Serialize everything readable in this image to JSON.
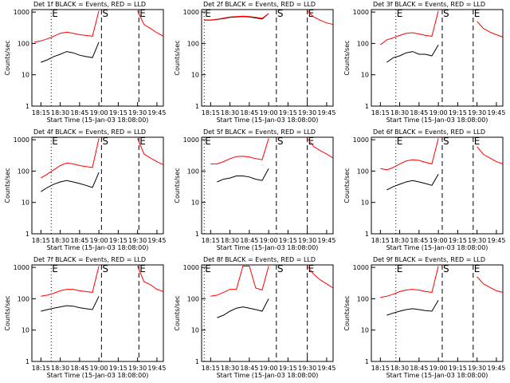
{
  "chart_data": [
    {
      "type": "line",
      "title": "Det 1f BLACK = Events, RED = LLD",
      "x_label": "Start Time (15-Jan-03 18:08:00)",
      "y_label": "Counts/sec",
      "log_y": true,
      "x": [
        "18:10",
        "18:15",
        "18:20",
        "18:25",
        "18:30",
        "18:35",
        "18:40",
        "18:45",
        "18:50",
        "18:55",
        "19:00",
        "19:05",
        "19:10",
        "19:15",
        "19:20",
        "19:25",
        "19:30",
        "19:35",
        "19:40",
        "19:45",
        "19:50"
      ],
      "xlim": [
        "18:08",
        "19:50"
      ],
      "xticks": [
        "18:15",
        "18:30",
        "18:45",
        "19:00",
        "19:15",
        "19:30",
        "19:45"
      ],
      "ylim": [
        1,
        1200
      ],
      "yticks": [
        1,
        10,
        100,
        1000
      ],
      "markers": [
        {
          "label": "E",
          "x": "18:23",
          "style": "dotted"
        },
        {
          "label": "S",
          "x": "19:02",
          "style": "dashed"
        },
        {
          "label": "E",
          "x": "19:31",
          "style": "dashed"
        }
      ],
      "series": [
        {
          "color": "#000000",
          "values": [
            null,
            25,
            30,
            38,
            45,
            55,
            50,
            42,
            38,
            35,
            110,
            null,
            null,
            null,
            null,
            null,
            null,
            null,
            null,
            null,
            null
          ]
        },
        {
          "color": "#ff0000",
          "values": [
            110,
            120,
            140,
            170,
            210,
            230,
            210,
            190,
            180,
            170,
            1100,
            null,
            null,
            null,
            null,
            null,
            1100,
            400,
            300,
            220,
            170
          ]
        }
      ]
    },
    {
      "type": "line",
      "title": "Det 2f BLACK = Events, RED = LLD",
      "x_label": "Start Time (15-Jan-03 18:08:00)",
      "y_label": "Counts/sec",
      "log_y": true,
      "x": [
        "18:10",
        "18:15",
        "18:20",
        "18:25",
        "18:30",
        "18:35",
        "18:40",
        "18:45",
        "18:50",
        "18:55",
        "19:00",
        "19:05",
        "19:10",
        "19:15",
        "19:20",
        "19:25",
        "19:30",
        "19:35",
        "19:40",
        "19:45",
        "19:50"
      ],
      "xlim": [
        "18:08",
        "19:50"
      ],
      "xticks": [
        "18:15",
        "18:30",
        "18:45",
        "19:00",
        "19:15",
        "19:30",
        "19:45"
      ],
      "ylim": [
        1,
        1200
      ],
      "yticks": [
        1,
        10,
        100,
        1000
      ],
      "markers": [
        {
          "label": "E",
          "x": "18:10",
          "style": "dotted"
        },
        {
          "label": "S",
          "x": "19:06",
          "style": "dashed"
        },
        {
          "label": "E",
          "x": "19:30",
          "style": "dashed"
        }
      ],
      "series": [
        {
          "color": "#000000",
          "values": [
            550,
            550,
            580,
            620,
            680,
            700,
            720,
            700,
            650,
            600,
            900,
            null,
            null,
            null,
            null,
            null,
            null,
            null,
            null,
            null,
            null
          ]
        },
        {
          "color": "#ff0000",
          "values": [
            560,
            560,
            590,
            640,
            700,
            720,
            740,
            720,
            680,
            630,
            900,
            null,
            null,
            null,
            null,
            null,
            1100,
            700,
            550,
            450,
            400
          ]
        }
      ]
    },
    {
      "type": "line",
      "title": "Det 3f BLACK = Events, RED = LLD",
      "x_label": "Start Time (15-Jan-03 18:08:00)",
      "y_label": "Counts/sec",
      "log_y": true,
      "x": [
        "18:10",
        "18:15",
        "18:20",
        "18:25",
        "18:30",
        "18:35",
        "18:40",
        "18:45",
        "18:50",
        "18:55",
        "19:00",
        "19:05",
        "19:10",
        "19:15",
        "19:20",
        "19:25",
        "19:30",
        "19:35",
        "19:40",
        "19:45",
        "19:50"
      ],
      "xlim": [
        "18:08",
        "19:50"
      ],
      "xticks": [
        "18:15",
        "18:30",
        "18:45",
        "19:00",
        "19:15",
        "19:30",
        "19:45"
      ],
      "ylim": [
        1,
        1200
      ],
      "yticks": [
        1,
        10,
        100,
        1000
      ],
      "markers": [
        {
          "label": "E",
          "x": "18:27",
          "style": "dotted"
        },
        {
          "label": "S",
          "x": "19:03",
          "style": "dashed"
        },
        {
          "label": "E",
          "x": "19:27",
          "style": "dashed"
        }
      ],
      "series": [
        {
          "color": "#000000",
          "values": [
            null,
            null,
            25,
            35,
            40,
            50,
            55,
            45,
            45,
            40,
            90,
            null,
            null,
            null,
            null,
            null,
            null,
            null,
            null,
            null,
            null
          ]
        },
        {
          "color": "#ff0000",
          "values": [
            null,
            90,
            130,
            150,
            180,
            210,
            220,
            200,
            180,
            170,
            1100,
            null,
            null,
            null,
            null,
            null,
            500,
            300,
            230,
            190,
            160
          ]
        }
      ]
    },
    {
      "type": "line",
      "title": "Det 4f BLACK = Events, RED = LLD",
      "x_label": "Start Time (15-Jan-03 18:08:00)",
      "y_label": "Counts/sec",
      "log_y": true,
      "x": [
        "18:10",
        "18:15",
        "18:20",
        "18:25",
        "18:30",
        "18:35",
        "18:40",
        "18:45",
        "18:50",
        "18:55",
        "19:00",
        "19:05",
        "19:10",
        "19:15",
        "19:20",
        "19:25",
        "19:30",
        "19:35",
        "19:40",
        "19:45",
        "19:50"
      ],
      "xlim": [
        "18:08",
        "19:50"
      ],
      "xticks": [
        "18:15",
        "18:30",
        "18:45",
        "19:00",
        "19:15",
        "19:30",
        "19:45"
      ],
      "ylim": [
        1,
        1200
      ],
      "yticks": [
        1,
        10,
        100,
        1000
      ],
      "markers": [
        {
          "label": "E",
          "x": "18:23",
          "style": "dotted"
        },
        {
          "label": "S",
          "x": "19:02",
          "style": "dashed"
        },
        {
          "label": "E",
          "x": "19:31",
          "style": "dashed"
        }
      ],
      "series": [
        {
          "color": "#000000",
          "values": [
            null,
            22,
            30,
            38,
            45,
            50,
            45,
            40,
            35,
            30,
            90,
            null,
            null,
            null,
            null,
            null,
            null,
            null,
            null,
            null,
            null
          ]
        },
        {
          "color": "#ff0000",
          "values": [
            null,
            60,
            80,
            110,
            150,
            180,
            170,
            150,
            140,
            130,
            1100,
            null,
            null,
            null,
            null,
            null,
            1100,
            350,
            260,
            200,
            160
          ]
        }
      ]
    },
    {
      "type": "line",
      "title": "Det 5f BLACK = Events, RED = LLD",
      "x_label": "Start Time (15-Jan-03 18:08:00)",
      "y_label": "Counts/sec",
      "log_y": true,
      "x": [
        "18:10",
        "18:15",
        "18:20",
        "18:25",
        "18:30",
        "18:35",
        "18:40",
        "18:45",
        "18:50",
        "18:55",
        "19:00",
        "19:05",
        "19:10",
        "19:15",
        "19:20",
        "19:25",
        "19:30",
        "19:35",
        "19:40",
        "19:45",
        "19:50"
      ],
      "xlim": [
        "18:08",
        "19:50"
      ],
      "xticks": [
        "18:15",
        "18:30",
        "18:45",
        "19:00",
        "19:15",
        "19:30",
        "19:45"
      ],
      "ylim": [
        1,
        1200
      ],
      "yticks": [
        1,
        10,
        100,
        1000
      ],
      "markers": [
        {
          "label": "E",
          "x": "18:10",
          "style": "dotted"
        },
        {
          "label": "S",
          "x": "19:06",
          "style": "dashed"
        },
        {
          "label": "E",
          "x": "19:30",
          "style": "dashed"
        }
      ],
      "series": [
        {
          "color": "#000000",
          "values": [
            null,
            null,
            45,
            55,
            60,
            70,
            70,
            65,
            55,
            50,
            120,
            null,
            null,
            null,
            null,
            null,
            null,
            null,
            null,
            null,
            null
          ]
        },
        {
          "color": "#ff0000",
          "values": [
            null,
            170,
            170,
            200,
            250,
            290,
            300,
            280,
            250,
            230,
            1100,
            null,
            null,
            null,
            null,
            null,
            1100,
            600,
            450,
            350,
            260
          ]
        }
      ]
    },
    {
      "type": "line",
      "title": "Det 6f BLACK = Events, RED = LLD",
      "x_label": "Start Time (15-Jan-03 18:08:00)",
      "y_label": "Counts/sec",
      "log_y": true,
      "x": [
        "18:10",
        "18:15",
        "18:20",
        "18:25",
        "18:30",
        "18:35",
        "18:40",
        "18:45",
        "18:50",
        "18:55",
        "19:00",
        "19:05",
        "19:10",
        "19:15",
        "19:20",
        "19:25",
        "19:30",
        "19:35",
        "19:40",
        "19:45",
        "19:50"
      ],
      "xlim": [
        "18:08",
        "19:50"
      ],
      "xticks": [
        "18:15",
        "18:30",
        "18:45",
        "19:00",
        "19:15",
        "19:30",
        "19:45"
      ],
      "ylim": [
        1,
        1200
      ],
      "yticks": [
        1,
        10,
        100,
        1000
      ],
      "markers": [
        {
          "label": "E",
          "x": "18:27",
          "style": "dotted"
        },
        {
          "label": "S",
          "x": "19:03",
          "style": "dashed"
        },
        {
          "label": "E",
          "x": "19:27",
          "style": "dashed"
        }
      ],
      "series": [
        {
          "color": "#000000",
          "values": [
            null,
            null,
            25,
            32,
            38,
            45,
            50,
            45,
            40,
            35,
            80,
            null,
            null,
            null,
            null,
            null,
            null,
            null,
            null,
            null,
            null
          ]
        },
        {
          "color": "#ff0000",
          "values": [
            null,
            120,
            110,
            130,
            170,
            210,
            230,
            220,
            190,
            170,
            1100,
            null,
            null,
            null,
            null,
            null,
            600,
            340,
            260,
            200,
            170
          ]
        }
      ]
    },
    {
      "type": "line",
      "title": "Det 7f BLACK = Events, RED = LLD",
      "x_label": "Start Time (15-Jan-03 18:08:00)",
      "y_label": "Counts/sec",
      "log_y": true,
      "x": [
        "18:10",
        "18:15",
        "18:20",
        "18:25",
        "18:30",
        "18:35",
        "18:40",
        "18:45",
        "18:50",
        "18:55",
        "19:00",
        "19:05",
        "19:10",
        "19:15",
        "19:20",
        "19:25",
        "19:30",
        "19:35",
        "19:40",
        "19:45",
        "19:50"
      ],
      "xlim": [
        "18:08",
        "19:50"
      ],
      "xticks": [
        "18:15",
        "18:30",
        "18:45",
        "19:00",
        "19:15",
        "19:30",
        "19:45"
      ],
      "ylim": [
        1,
        1200
      ],
      "yticks": [
        1,
        10,
        100,
        1000
      ],
      "markers": [
        {
          "label": "E",
          "x": "18:23",
          "style": "dotted"
        },
        {
          "label": "S",
          "x": "19:02",
          "style": "dashed"
        },
        {
          "label": "E",
          "x": "19:31",
          "style": "dashed"
        }
      ],
      "series": [
        {
          "color": "#000000",
          "values": [
            null,
            40,
            45,
            50,
            55,
            60,
            58,
            52,
            48,
            45,
            120,
            null,
            null,
            null,
            null,
            null,
            null,
            null,
            null,
            null,
            null
          ]
        },
        {
          "color": "#ff0000",
          "values": [
            null,
            120,
            130,
            150,
            180,
            200,
            200,
            180,
            170,
            160,
            1100,
            null,
            null,
            null,
            null,
            null,
            1100,
            350,
            280,
            200,
            170
          ]
        }
      ]
    },
    {
      "type": "line",
      "title": "Det 8f BLACK = Events, RED = LLD",
      "x_label": "Start Time (15-Jan-03 18:08:00)",
      "y_label": "Counts/sec",
      "log_y": true,
      "x": [
        "18:10",
        "18:15",
        "18:20",
        "18:25",
        "18:30",
        "18:35",
        "18:40",
        "18:45",
        "18:50",
        "18:55",
        "19:00",
        "19:05",
        "19:10",
        "19:15",
        "19:20",
        "19:25",
        "19:30",
        "19:35",
        "19:40",
        "19:45",
        "19:50"
      ],
      "xlim": [
        "18:08",
        "19:50"
      ],
      "xticks": [
        "18:15",
        "18:30",
        "18:45",
        "19:00",
        "19:15",
        "19:30",
        "19:45"
      ],
      "ylim": [
        1,
        1200
      ],
      "yticks": [
        1,
        10,
        100,
        1000
      ],
      "markers": [
        {
          "label": "E",
          "x": "18:10",
          "style": "dotted"
        },
        {
          "label": "S",
          "x": "19:06",
          "style": "dashed"
        },
        {
          "label": "E",
          "x": "19:30",
          "style": "dashed"
        }
      ],
      "series": [
        {
          "color": "#000000",
          "values": [
            null,
            null,
            25,
            30,
            40,
            50,
            55,
            50,
            45,
            40,
            100,
            null,
            null,
            null,
            null,
            null,
            null,
            null,
            null,
            null,
            null
          ]
        },
        {
          "color": "#ff0000",
          "values": [
            null,
            120,
            130,
            160,
            200,
            200,
            1100,
            1100,
            220,
            190,
            1100,
            null,
            null,
            null,
            null,
            null,
            1100,
            600,
            400,
            300,
            220
          ]
        }
      ]
    },
    {
      "type": "line",
      "title": "Det 9f BLACK = Events, RED = LLD",
      "x_label": "Start Time (15-Jan-03 18:08:00)",
      "y_label": "Counts/sec",
      "log_y": true,
      "x": [
        "18:10",
        "18:15",
        "18:20",
        "18:25",
        "18:30",
        "18:35",
        "18:40",
        "18:45",
        "18:50",
        "18:55",
        "19:00",
        "19:05",
        "19:10",
        "19:15",
        "19:20",
        "19:25",
        "19:30",
        "19:35",
        "19:40",
        "19:45",
        "19:50"
      ],
      "xlim": [
        "18:08",
        "19:50"
      ],
      "xticks": [
        "18:15",
        "18:30",
        "18:45",
        "19:00",
        "19:15",
        "19:30",
        "19:45"
      ],
      "ylim": [
        1,
        1200
      ],
      "yticks": [
        1,
        10,
        100,
        1000
      ],
      "markers": [
        {
          "label": "E",
          "x": "18:27",
          "style": "dotted"
        },
        {
          "label": "S",
          "x": "19:03",
          "style": "dashed"
        },
        {
          "label": "E",
          "x": "19:27",
          "style": "dashed"
        }
      ],
      "series": [
        {
          "color": "#000000",
          "values": [
            null,
            null,
            30,
            35,
            40,
            45,
            48,
            45,
            42,
            40,
            90,
            null,
            null,
            null,
            null,
            null,
            null,
            null,
            null,
            null,
            null
          ]
        },
        {
          "color": "#ff0000",
          "values": [
            null,
            110,
            120,
            140,
            170,
            190,
            200,
            190,
            170,
            160,
            1100,
            null,
            null,
            null,
            null,
            null,
            500,
            300,
            230,
            180,
            160
          ]
        }
      ]
    }
  ]
}
